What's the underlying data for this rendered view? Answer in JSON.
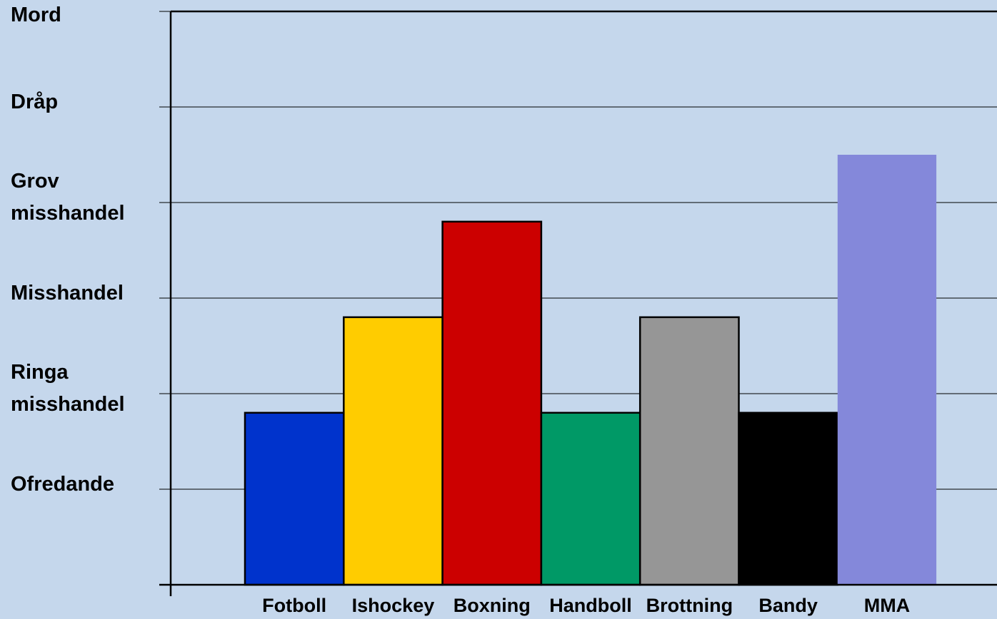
{
  "chart_data": {
    "type": "bar",
    "categories": [
      "Fotboll",
      "Ishockey",
      "Boxning",
      "Handboll",
      "Brottning",
      "Bandy",
      "MMA"
    ],
    "values": [
      1.8,
      2.8,
      3.8,
      1.8,
      2.8,
      1.8,
      4.5
    ],
    "colors": [
      "#0033cc",
      "#ffcc00",
      "#cc0000",
      "#009966",
      "#969696",
      "#000000",
      "#8488da"
    ],
    "y_tick_labels": [
      {
        "value": 1,
        "lines": [
          "Ofredande"
        ]
      },
      {
        "value": 2,
        "lines": [
          "Ringa",
          "misshandel"
        ]
      },
      {
        "value": 3,
        "lines": [
          "Misshandel"
        ]
      },
      {
        "value": 4,
        "lines": [
          "Grov",
          "misshandel"
        ]
      },
      {
        "value": 5,
        "lines": [
          "Dråp"
        ]
      },
      {
        "value": 6,
        "lines": [
          "Mord"
        ]
      }
    ],
    "ylim": [
      0,
      6
    ],
    "grid": true,
    "background": "#c5d7ec",
    "title": "",
    "xlabel": "",
    "ylabel": ""
  }
}
